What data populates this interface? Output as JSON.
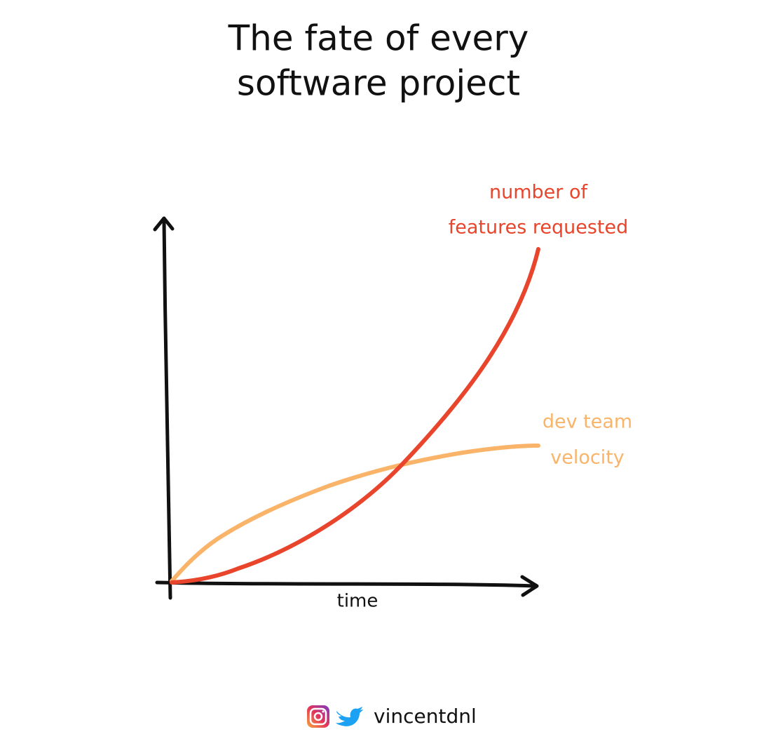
{
  "header": {
    "title_lines": [
      "The fate of every",
      "software project"
    ]
  },
  "curves": [
    {
      "label_lines": [
        "number of",
        "features requested"
      ]
    },
    {
      "label_lines": [
        "dev team",
        "velocity"
      ]
    }
  ],
  "x_axis_label": "time",
  "footer": {
    "handle": "vincentdnl"
  }
}
